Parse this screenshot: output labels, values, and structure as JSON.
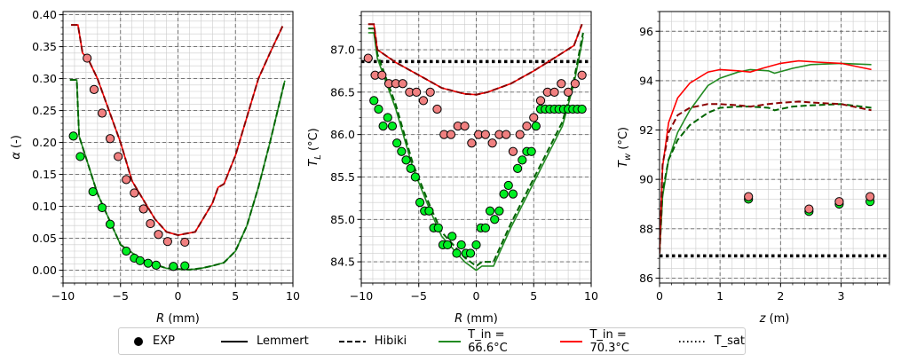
{
  "legend": {
    "exp": "EXP",
    "lemmert": "Lemmert",
    "hibiki": "Hibiki",
    "tin1": "T_in = 66.6°C",
    "tin2": "T_in = 70.3°C",
    "tsat": "T_sat"
  },
  "colors": {
    "green": "#228b22",
    "dgreen": "#006400",
    "red": "#ff0000",
    "dred": "#8b0000",
    "mgreen": "#00ee22",
    "mred": "#f08080"
  },
  "chart_data": [
    {
      "type": "line",
      "xlabel": "R (mm)",
      "ylabel": "α (-)",
      "xlim": [
        -10,
        10
      ],
      "ylim": [
        -0.02,
        0.405
      ],
      "xticks": [
        "−10",
        "−5",
        "0",
        "5",
        "10"
      ],
      "yticks": [
        "0.00",
        "0.05",
        "0.10",
        "0.15",
        "0.20",
        "0.25",
        "0.30",
        "0.35",
        "0.40"
      ],
      "yticks_v": [
        0,
        0.05,
        0.1,
        0.15,
        0.2,
        0.25,
        0.3,
        0.35,
        0.4
      ],
      "xticks_v": [
        -10,
        -5,
        0,
        5,
        10
      ],
      "grid": true,
      "series": [
        {
          "style": "solid",
          "color": "green",
          "x": [
            -9.4,
            -8.8,
            -8.6,
            -7,
            -5,
            -3,
            -1,
            1,
            2,
            3,
            4,
            5,
            6,
            7,
            8,
            8.8,
            9.3
          ],
          "y": [
            0.298,
            0.298,
            0.21,
            0.12,
            0.04,
            0.015,
            0.003,
            0.001,
            0.003,
            0.007,
            0.012,
            0.03,
            0.07,
            0.13,
            0.2,
            0.26,
            0.297
          ]
        },
        {
          "style": "dashed",
          "color": "dgreen",
          "x": [
            -9.4,
            -8.8,
            -8.6,
            -7,
            -5,
            -3,
            -1,
            1,
            2,
            3,
            4,
            5,
            6,
            7,
            8,
            8.8,
            9.3
          ],
          "y": [
            0.298,
            0.298,
            0.21,
            0.12,
            0.04,
            0.015,
            0.003,
            0.001,
            0.003,
            0.007,
            0.012,
            0.03,
            0.07,
            0.13,
            0.2,
            0.26,
            0.297
          ]
        },
        {
          "style": "solid",
          "color": "red",
          "x": [
            -9.3,
            -8.7,
            -8.3,
            -7.8,
            -7,
            -6,
            -5,
            -4,
            -3,
            -2,
            -1,
            0,
            1.5,
            3,
            3.5,
            4,
            5,
            6,
            7,
            8,
            9.1
          ],
          "y": [
            0.384,
            0.384,
            0.34,
            0.33,
            0.3,
            0.25,
            0.2,
            0.14,
            0.11,
            0.08,
            0.06,
            0.055,
            0.06,
            0.105,
            0.13,
            0.135,
            0.18,
            0.24,
            0.3,
            0.34,
            0.382
          ]
        },
        {
          "style": "dashed",
          "color": "dred",
          "x": [
            -9.3,
            -8.7,
            -8.3,
            -7.8,
            -7,
            -6,
            -5,
            -4,
            -3,
            -2,
            -1,
            0,
            1.5,
            3,
            3.5,
            4,
            5,
            6,
            7,
            8,
            9.1
          ],
          "y": [
            0.384,
            0.384,
            0.34,
            0.33,
            0.3,
            0.25,
            0.2,
            0.14,
            0.11,
            0.08,
            0.06,
            0.055,
            0.06,
            0.105,
            0.13,
            0.135,
            0.18,
            0.24,
            0.3,
            0.34,
            0.382
          ]
        }
      ],
      "points": [
        {
          "color": "mgreen",
          "x": [
            -9.1,
            -8.5,
            -7.4,
            -6.6,
            -5.9,
            -4.5,
            -3.8,
            -3.3,
            -2.6,
            -1.9,
            -0.4,
            0.6
          ],
          "y": [
            0.21,
            0.178,
            0.123,
            0.098,
            0.072,
            0.03,
            0.019,
            0.015,
            0.011,
            0.008,
            0.006,
            0.007
          ]
        },
        {
          "color": "mred",
          "x": [
            -7.9,
            -7.3,
            -6.6,
            -5.9,
            -5.2,
            -4.5,
            -3.8,
            -3.0,
            -2.4,
            -1.7,
            -0.9,
            0.6
          ],
          "y": [
            0.332,
            0.283,
            0.246,
            0.206,
            0.178,
            0.142,
            0.121,
            0.096,
            0.073,
            0.056,
            0.045,
            0.044
          ]
        }
      ]
    },
    {
      "type": "line",
      "xlabel": "R (mm)",
      "ylabel": "T_L (°C)",
      "xlim": [
        -10,
        10
      ],
      "ylim": [
        84.25,
        87.45
      ],
      "xticks": [
        "−10",
        "−5",
        "0",
        "5",
        "10"
      ],
      "xticks_v": [
        -10,
        -5,
        0,
        5,
        10
      ],
      "yticks": [
        "84.5",
        "85.0",
        "85.5",
        "86.0",
        "86.5",
        "87.0"
      ],
      "yticks_v": [
        84.5,
        85,
        85.5,
        86,
        86.5,
        87
      ],
      "grid": true,
      "tsat": 86.86,
      "series": [
        {
          "style": "solid",
          "color": "green",
          "x": [
            -9.4,
            -8.9,
            -8.6,
            -7,
            -5.5,
            -4,
            -3,
            -1,
            0,
            0.5,
            1.5,
            3,
            4.5,
            6,
            7.5,
            8.5,
            9.3
          ],
          "y": [
            87.2,
            87.2,
            86.9,
            86.3,
            85.6,
            85.1,
            84.8,
            84.5,
            84.4,
            84.45,
            84.45,
            84.9,
            85.3,
            85.7,
            86.1,
            86.6,
            87.15
          ]
        },
        {
          "style": "dashed",
          "color": "dgreen",
          "x": [
            -9.4,
            -8.9,
            -8.6,
            -7,
            -5.5,
            -4,
            -3,
            -1,
            0,
            0.5,
            1.5,
            3,
            4.5,
            6,
            7.5,
            8.5,
            9.3
          ],
          "y": [
            87.25,
            87.25,
            86.95,
            86.35,
            85.65,
            85.15,
            84.85,
            84.55,
            84.45,
            84.5,
            84.5,
            84.95,
            85.35,
            85.75,
            86.15,
            86.65,
            87.2
          ]
        },
        {
          "style": "solid",
          "color": "red",
          "x": [
            -9.4,
            -8.9,
            -8.6,
            -7,
            -5,
            -3,
            -1,
            0,
            1,
            3,
            5,
            7,
            8.5,
            9.2
          ],
          "y": [
            87.3,
            87.3,
            87.0,
            86.85,
            86.7,
            86.55,
            86.48,
            86.47,
            86.5,
            86.6,
            86.75,
            86.92,
            87.05,
            87.3
          ]
        },
        {
          "style": "dashed",
          "color": "dred",
          "x": [
            -9.4,
            -8.9,
            -8.6,
            -7,
            -5,
            -3,
            -1,
            0,
            1,
            3,
            5,
            7,
            8.5,
            9.2
          ],
          "y": [
            87.3,
            87.3,
            87.0,
            86.85,
            86.7,
            86.55,
            86.48,
            86.47,
            86.5,
            86.6,
            86.75,
            86.92,
            87.05,
            87.3
          ]
        }
      ],
      "points": [
        {
          "color": "mgreen",
          "x": [
            -8.9,
            -8.5,
            -8.1,
            -7.7,
            -7.3,
            -6.9,
            -6.5,
            -6.1,
            -5.7,
            -5.3,
            -4.9,
            -4.5,
            -4.1,
            -3.7,
            -3.3,
            -2.9,
            -2.5,
            -2.1,
            -1.7,
            -1.3,
            -0.9,
            -0.5,
            0,
            0.4,
            0.8,
            1.2,
            1.6,
            2,
            2.4,
            2.8,
            3.2,
            3.6,
            4,
            4.4,
            4.8,
            5.2,
            5.6,
            6,
            6.4,
            6.8,
            7.2,
            7.6,
            8,
            8.4,
            8.8,
            9.2
          ],
          "y": [
            86.4,
            86.3,
            86.1,
            86.2,
            86.1,
            85.9,
            85.8,
            85.7,
            85.6,
            85.5,
            85.2,
            85.1,
            85.1,
            84.9,
            84.9,
            84.7,
            84.7,
            84.8,
            84.6,
            84.7,
            84.6,
            84.6,
            84.7,
            84.9,
            84.9,
            85.1,
            85.0,
            85.1,
            85.3,
            85.4,
            85.3,
            85.6,
            85.7,
            85.8,
            85.8,
            86.1,
            86.3,
            86.3,
            86.3,
            86.3,
            86.3,
            86.3,
            86.3,
            86.3,
            86.3,
            86.3
          ]
        },
        {
          "color": "mred",
          "x": [
            -9.4,
            -8.8,
            -8.2,
            -7.6,
            -7,
            -6.4,
            -5.8,
            -5.2,
            -4.6,
            -4,
            -3.4,
            -2.8,
            -2.2,
            -1.6,
            -1,
            -0.4,
            0.2,
            0.8,
            1.4,
            2,
            2.6,
            3.2,
            3.8,
            4.4,
            5,
            5.6,
            6.2,
            6.8,
            7.4,
            8,
            8.6,
            9.2
          ],
          "y": [
            86.9,
            86.7,
            86.7,
            86.6,
            86.6,
            86.6,
            86.5,
            86.5,
            86.4,
            86.5,
            86.3,
            86.0,
            86.0,
            86.1,
            86.1,
            85.9,
            86.0,
            86.0,
            85.9,
            86.0,
            86.0,
            85.8,
            86.0,
            86.1,
            86.2,
            86.4,
            86.5,
            86.5,
            86.6,
            86.5,
            86.6,
            86.7
          ]
        }
      ]
    },
    {
      "type": "line",
      "xlabel": "z (m)",
      "ylabel": "T_w (°C)",
      "xlim": [
        0,
        3.8
      ],
      "ylim": [
        85.8,
        96.8
      ],
      "xticks": [
        "0",
        "1",
        "2",
        "3"
      ],
      "xticks_v": [
        0,
        1,
        2,
        3
      ],
      "yticks": [
        "86",
        "88",
        "90",
        "92",
        "94",
        "96"
      ],
      "yticks_v": [
        86,
        88,
        90,
        92,
        94,
        96
      ],
      "grid": true,
      "tsat": 86.9,
      "series": [
        {
          "style": "solid",
          "color": "green",
          "x": [
            0,
            0.05,
            0.15,
            0.3,
            0.5,
            0.8,
            1.0,
            1.3,
            1.5,
            1.8,
            1.9,
            2.2,
            2.5,
            3.0,
            3.5
          ],
          "y": [
            87,
            89.3,
            90.8,
            91.9,
            92.8,
            93.8,
            94.1,
            94.35,
            94.45,
            94.4,
            94.3,
            94.5,
            94.65,
            94.7,
            94.65
          ]
        },
        {
          "style": "dashed",
          "color": "dgreen",
          "x": [
            0,
            0.05,
            0.15,
            0.3,
            0.5,
            0.8,
            1.0,
            1.3,
            1.5,
            1.8,
            1.9,
            2.2,
            2.5,
            3.0,
            3.5
          ],
          "y": [
            87,
            89.5,
            90.8,
            91.6,
            92.2,
            92.7,
            92.9,
            92.95,
            92.95,
            92.9,
            92.8,
            92.95,
            93.0,
            93.05,
            92.9
          ]
        },
        {
          "style": "solid",
          "color": "red",
          "x": [
            0,
            0.05,
            0.15,
            0.3,
            0.5,
            0.8,
            1.0,
            1.3,
            1.5,
            1.7,
            2.0,
            2.3,
            2.6,
            3.0,
            3.5
          ],
          "y": [
            87,
            90.5,
            92.3,
            93.3,
            93.9,
            94.35,
            94.45,
            94.4,
            94.35,
            94.5,
            94.7,
            94.8,
            94.75,
            94.7,
            94.45
          ]
        },
        {
          "style": "dashed",
          "color": "dred",
          "x": [
            0,
            0.05,
            0.15,
            0.3,
            0.5,
            0.8,
            1.0,
            1.3,
            1.5,
            1.8,
            2.0,
            2.3,
            2.6,
            3.0,
            3.5
          ],
          "y": [
            87,
            90.6,
            91.9,
            92.6,
            92.9,
            93.05,
            93.05,
            93.0,
            92.95,
            93.05,
            93.1,
            93.15,
            93.1,
            93.05,
            92.8
          ]
        }
      ],
      "points": [
        {
          "color": "mgreen",
          "x": [
            1.47,
            2.47,
            2.97,
            3.48
          ],
          "y": [
            89.2,
            88.7,
            89.0,
            89.1
          ]
        },
        {
          "color": "mred",
          "x": [
            1.47,
            2.47,
            2.97,
            3.48
          ],
          "y": [
            89.3,
            88.8,
            89.1,
            89.3
          ]
        }
      ]
    }
  ]
}
